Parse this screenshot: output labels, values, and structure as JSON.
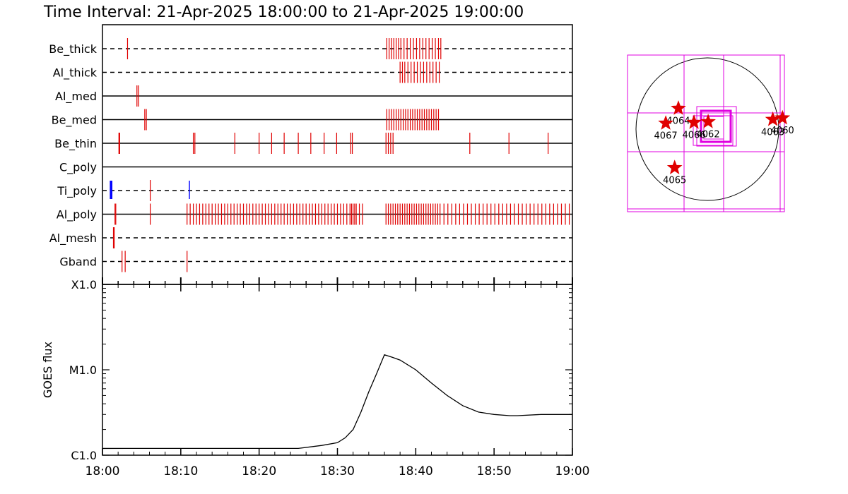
{
  "title": "Time Interval: 21-Apr-2025 18:00:00 to 21-Apr-2025 19:00:00",
  "colors": {
    "red": "#e00000",
    "blue": "#0000ff",
    "magenta": "#e000e0",
    "black": "#000000",
    "background": "#ffffff"
  },
  "chart_data": [
    {
      "type": "event-timeline",
      "x_range": [
        "18:00",
        "19:00"
      ],
      "x_unit": "minutes after 18:00",
      "channels": [
        {
          "name": "Be_thick",
          "line": "dashed",
          "events_red": [
            3.2,
            36.3,
            36.6,
            36.9,
            37.2,
            37.5,
            37.8,
            38.1,
            38.5,
            38.9,
            39.3,
            39.7,
            40.1,
            40.5,
            40.9,
            41.3,
            41.7,
            42.1,
            42.5,
            42.9,
            43.2
          ],
          "events_blue": []
        },
        {
          "name": "Al_thick",
          "line": "dashed",
          "events_red": [
            38.0,
            38.3,
            38.6,
            39.0,
            39.4,
            39.8,
            40.2,
            40.6,
            41.0,
            41.4,
            41.8,
            42.2,
            42.6,
            43.0
          ],
          "events_blue": []
        },
        {
          "name": "Al_med",
          "line": "solid",
          "events_red": [
            4.4,
            4.6
          ],
          "events_blue": []
        },
        {
          "name": "Be_med",
          "line": "solid",
          "events_red": [
            5.4,
            5.6,
            36.3,
            36.6,
            36.9,
            37.2,
            37.5,
            37.8,
            38.1,
            38.4,
            38.7,
            39.0,
            39.3,
            39.6,
            39.9,
            40.2,
            40.5,
            40.8,
            41.1,
            41.4,
            41.7,
            42.0,
            42.3,
            42.6,
            42.9
          ],
          "events_blue": []
        },
        {
          "name": "Be_thin",
          "line": "solid",
          "events_red": [
            2.1,
            2.2,
            11.6,
            11.8,
            16.9,
            20.0,
            21.6,
            23.2,
            25.0,
            26.6,
            28.3,
            29.9,
            31.7,
            31.9,
            36.2,
            36.5,
            36.8,
            37.1,
            46.9,
            51.9,
            56.9
          ],
          "events_blue": []
        },
        {
          "name": "C_poly",
          "line": "solid",
          "events_red": [],
          "events_blue": []
        },
        {
          "name": "Ti_poly",
          "line": "dashed",
          "events_red": [
            6.1
          ],
          "events_blue": [
            1.0,
            1.1,
            1.2,
            11.1
          ]
        },
        {
          "name": "Al_poly",
          "line": "solid",
          "events_red": [
            1.6,
            1.7,
            6.1,
            10.8,
            11.2,
            11.6,
            12.0,
            12.4,
            12.8,
            13.2,
            13.6,
            14.0,
            14.4,
            14.8,
            15.2,
            15.6,
            16.0,
            16.4,
            16.8,
            17.2,
            17.6,
            18.0,
            18.4,
            18.8,
            19.2,
            19.6,
            20.0,
            20.4,
            20.8,
            21.2,
            21.6,
            22.0,
            22.4,
            22.8,
            23.2,
            23.6,
            24.0,
            24.4,
            24.8,
            25.2,
            25.6,
            26.0,
            26.4,
            26.8,
            27.2,
            27.6,
            28.0,
            28.4,
            28.8,
            29.2,
            29.6,
            30.0,
            30.4,
            30.8,
            31.2,
            31.6,
            31.8,
            32.0,
            32.2,
            32.4,
            32.8,
            33.2,
            36.2,
            36.5,
            36.8,
            37.1,
            37.4,
            37.7,
            38.0,
            38.3,
            38.6,
            38.9,
            39.2,
            39.5,
            39.8,
            40.1,
            40.4,
            40.7,
            41.0,
            41.3,
            41.6,
            41.9,
            42.2,
            42.5,
            42.8,
            43.1,
            43.6,
            44.1,
            44.6,
            45.1,
            45.6,
            46.1,
            46.6,
            47.1,
            47.6,
            48.1,
            48.6,
            49.1,
            49.6,
            50.1,
            50.6,
            51.1,
            51.6,
            52.1,
            52.6,
            53.1,
            53.6,
            54.1,
            54.6,
            55.1,
            55.6,
            56.1,
            56.6,
            57.1,
            57.6,
            58.1,
            58.6,
            59.1,
            59.6
          ],
          "events_blue": []
        },
        {
          "name": "Al_mesh",
          "line": "dashed",
          "events_red": [
            1.4,
            1.5
          ],
          "events_blue": []
        },
        {
          "name": "Gband",
          "line": "dashed",
          "events_red": [
            2.5,
            2.9,
            10.8
          ],
          "events_blue": []
        }
      ]
    },
    {
      "type": "line",
      "ylabel": "GOES flux",
      "yscale": "log",
      "y_ticks": [
        "X1.0",
        "M1.0",
        "C1.0"
      ],
      "ylim": [
        "C1.0",
        "X1.0"
      ],
      "x_ticks": [
        "18:00",
        "18:10",
        "18:20",
        "18:30",
        "18:40",
        "18:50",
        "19:00"
      ],
      "series": [
        {
          "x": [
            "18:00",
            "18:03",
            "18:08",
            "18:13",
            "18:16",
            "18:20",
            "18:25",
            "18:28",
            "18:30",
            "18:31",
            "18:32",
            "18:33",
            "18:34",
            "18:35",
            "18:36",
            "18:37",
            "18:38",
            "18:40",
            "18:42",
            "18:44",
            "18:46",
            "18:48",
            "18:50",
            "18:52",
            "18:53",
            "18:56",
            "19:00"
          ],
          "y_class": [
            "C1.2",
            "C1.2",
            "C1.2",
            "C1.2",
            "C1.2",
            "C1.2",
            "C1.2",
            "C1.3",
            "C1.4",
            "C1.6",
            "C2.0",
            "C3.2",
            "C5.5",
            "C9",
            "M1.5",
            "M1.4",
            "M1.3",
            "M1.0",
            "C7.0",
            "C5.0",
            "C3.8",
            "C3.2",
            "C3.0",
            "C2.9",
            "C2.9",
            "C3.0",
            "C3.0"
          ]
        }
      ]
    }
  ],
  "context_map": {
    "regions": [
      {
        "label": "4064",
        "x": -390,
        "y": 280
      },
      {
        "label": "4067",
        "x": -560,
        "y": 80
      },
      {
        "label": "4066",
        "x": -180,
        "y": 90
      },
      {
        "label": "4062",
        "x": 10,
        "y": 100
      },
      {
        "label": "4065",
        "x": -440,
        "y": -520
      },
      {
        "label": "4063",
        "x": 880,
        "y": 130
      },
      {
        "label": "4060",
        "x": 1010,
        "y": 150
      }
    ]
  }
}
